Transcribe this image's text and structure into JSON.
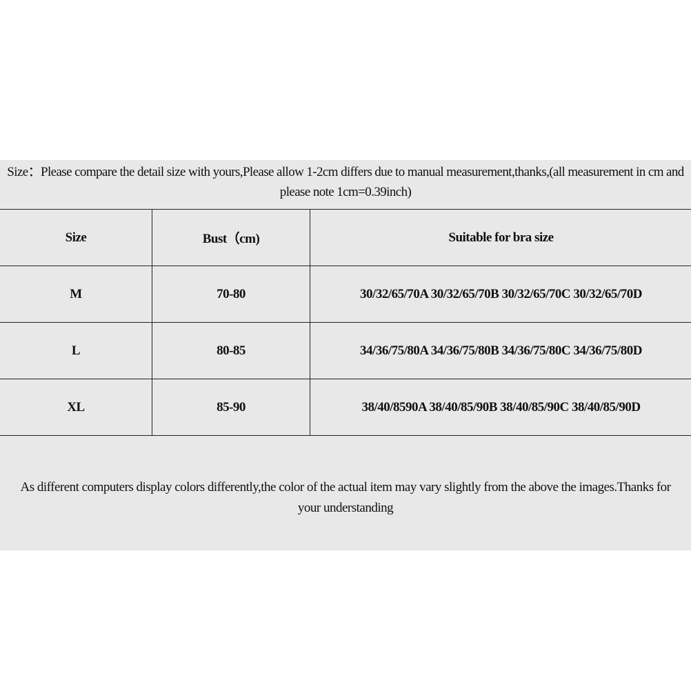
{
  "intro": "Size：Please compare the detail size with yours,Please allow 1-2cm differs due to manual measurement,thanks,(all measurement in cm and please note 1cm=0.39inch)",
  "table": {
    "headers": [
      "Size",
      "Bust（cm)",
      "Suitable for bra size"
    ],
    "rows": [
      [
        "M",
        "70-80",
        "30/32/65/70A 30/32/65/70B 30/32/65/70C 30/32/65/70D"
      ],
      [
        "L",
        "80-85",
        "34/36/75/80A 34/36/75/80B 34/36/75/80C 34/36/75/80D"
      ],
      [
        "XL",
        "85-90",
        "38/40/8590A 38/40/85/90B 38/40/85/90C 38/40/85/90D"
      ]
    ]
  },
  "footer": "As different computers display colors differently,the color of the actual item may vary slightly from the above the images.Thanks for your understanding"
}
